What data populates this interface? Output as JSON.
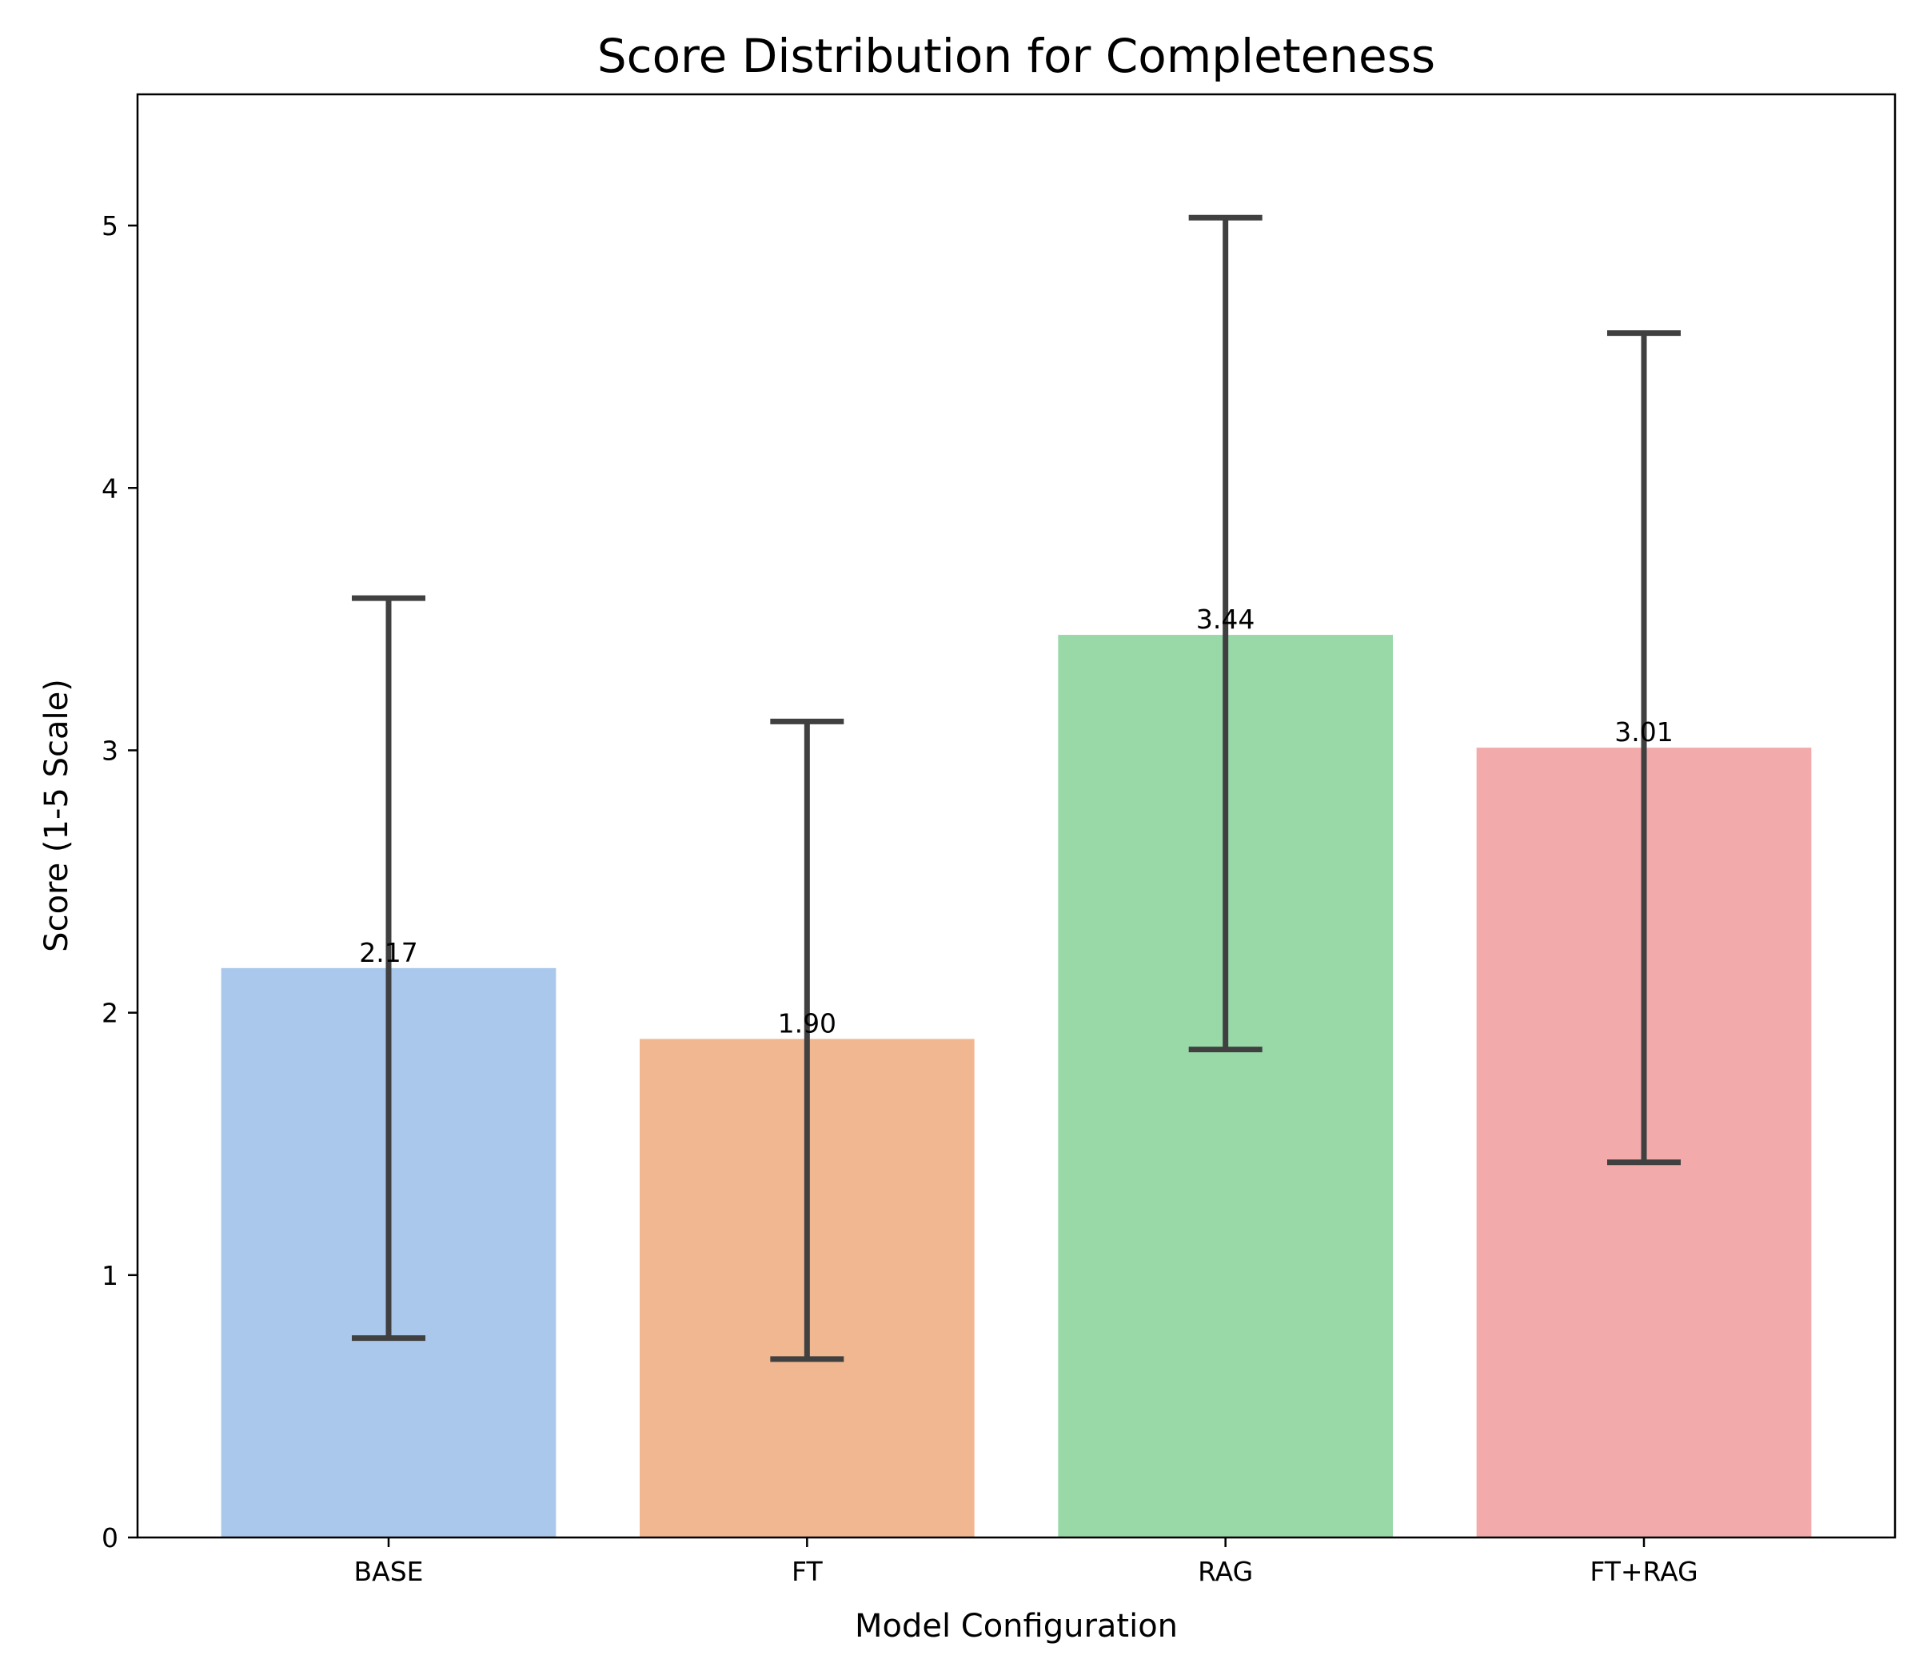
{
  "chart_data": {
    "type": "bar",
    "title": "Score Distribution for Completeness",
    "xlabel": "Model Configuration",
    "ylabel": "Score (1-5 Scale)",
    "categories": [
      "BASE",
      "FT",
      "RAG",
      "FT+RAG"
    ],
    "values": [
      2.17,
      1.9,
      3.44,
      3.01
    ],
    "value_labels": [
      "2.17",
      "1.90",
      "3.44",
      "3.01"
    ],
    "error_low": [
      0.76,
      0.68,
      1.86,
      1.43
    ],
    "error_high": [
      3.58,
      3.11,
      5.03,
      4.59
    ],
    "ylim": [
      0,
      5.5
    ],
    "yticks": [
      0,
      1,
      2,
      3,
      4,
      5
    ],
    "grid": false,
    "legend": "none",
    "colors": [
      "#a9c8ec",
      "#f0b791",
      "#99d9a8",
      "#f2aaaa"
    ],
    "error_color": "#404040"
  }
}
